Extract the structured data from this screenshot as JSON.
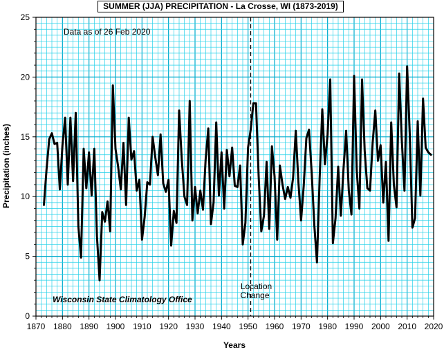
{
  "chart_data": {
    "type": "line",
    "title": "SUMMER (JJA)  PRECIPITATION - La Crosse, WI (1873-2019)",
    "xlabel": "Years",
    "ylabel": "Precipitation (inches)",
    "xlim": [
      1870,
      2020
    ],
    "ylim": [
      0,
      25
    ],
    "x_ticks": [
      1870,
      1880,
      1890,
      1900,
      1910,
      1920,
      1930,
      1940,
      1950,
      1960,
      1970,
      1980,
      1990,
      2000,
      2010,
      2020
    ],
    "y_ticks": [
      0,
      5,
      10,
      15,
      20,
      25
    ],
    "grid": true,
    "data_note": "Data as of 26 Feb 2020",
    "credit": "Wisconsin State Climatology Office",
    "annotation": {
      "x": 1951,
      "line1": "Location",
      "line2": "Change"
    },
    "colors": {
      "grid_minor": "#22d0e8",
      "grid_major": "#00aacc",
      "line": "#000000"
    },
    "series": [
      {
        "x": [
          1873,
          1874,
          1875,
          1876,
          1877,
          1878,
          1879,
          1880,
          1881,
          1882,
          1883,
          1884,
          1885,
          1886,
          1887,
          1888,
          1889,
          1890,
          1891,
          1892,
          1893,
          1894,
          1895,
          1896,
          1897,
          1898,
          1899,
          1900,
          1901,
          1902,
          1903,
          1904,
          1905,
          1906,
          1907,
          1908,
          1909,
          1910,
          1911,
          1912,
          1913,
          1914,
          1915,
          1916,
          1917,
          1918,
          1919,
          1920,
          1921,
          1922,
          1923,
          1924,
          1925,
          1926,
          1927,
          1928,
          1929,
          1930,
          1931,
          1932,
          1933,
          1934,
          1935,
          1936,
          1937,
          1938,
          1939,
          1940,
          1941,
          1942,
          1943,
          1944,
          1945,
          1946,
          1947,
          1948,
          1949,
          1950,
          1951,
          1952,
          1953,
          1954,
          1955,
          1956,
          1957,
          1958,
          1959,
          1960,
          1961,
          1962,
          1963,
          1964,
          1965,
          1966,
          1967,
          1968,
          1969,
          1970,
          1971,
          1972,
          1973,
          1974,
          1975,
          1976,
          1977,
          1978,
          1979,
          1980,
          1981,
          1982,
          1983,
          1984,
          1985,
          1986,
          1987,
          1988,
          1989,
          1990,
          1991,
          1992,
          1993,
          1994,
          1995,
          1996,
          1997,
          1998,
          1999,
          2000,
          2001,
          2002,
          2003,
          2004,
          2005,
          2006,
          2007,
          2008,
          2009,
          2010,
          2011,
          2012,
          2013,
          2014,
          2015,
          2016,
          2017,
          2018,
          2019
        ],
        "y": [
          9.3,
          12.3,
          14.8,
          15.3,
          14.4,
          14.5,
          10.6,
          14.3,
          16.6,
          11.0,
          16.6,
          11.3,
          17.0,
          7.5,
          4.9,
          14.0,
          10.7,
          13.7,
          10.1,
          14.0,
          6.7,
          3.0,
          8.7,
          7.9,
          9.6,
          7.1,
          19.3,
          14.0,
          12.5,
          10.6,
          14.5,
          9.3,
          16.6,
          13.1,
          13.8,
          10.5,
          11.4,
          6.4,
          8.3,
          11.2,
          11.0,
          15.0,
          13.3,
          11.8,
          15.2,
          11.1,
          10.4,
          11.4,
          5.9,
          8.8,
          7.8,
          17.2,
          13.1,
          10.0,
          9.3,
          18.0,
          8.0,
          10.8,
          8.6,
          10.5,
          8.9,
          13.1,
          15.7,
          7.7,
          9.5,
          16.2,
          10.1,
          13.7,
          9.0,
          13.9,
          11.7,
          14.1,
          10.9,
          10.8,
          12.6,
          6.0,
          7.8,
          14.1,
          15.6,
          17.8,
          17.8,
          11.7,
          7.1,
          8.4,
          12.9,
          7.3,
          14.2,
          11.7,
          6.4,
          12.6,
          11.0,
          9.8,
          10.8,
          9.9,
          11.6,
          15.5,
          11.2,
          8.0,
          10.9,
          14.9,
          15.6,
          12.0,
          7.6,
          4.5,
          11.5,
          17.3,
          12.7,
          15.2,
          19.8,
          6.1,
          8.2,
          12.5,
          8.4,
          12.3,
          15.5,
          10.5,
          8.5,
          20.1,
          12.2,
          9.0,
          19.8,
          13.8,
          10.7,
          10.5,
          14.5,
          17.2,
          13.0,
          14.3,
          9.5,
          12.9,
          6.3,
          16.2,
          11.0,
          9.1,
          20.3,
          14.7,
          10.5,
          20.9,
          15.2,
          7.4,
          8.2,
          16.3,
          10.1,
          18.2,
          14.1,
          13.7,
          13.5
        ]
      }
    ]
  }
}
